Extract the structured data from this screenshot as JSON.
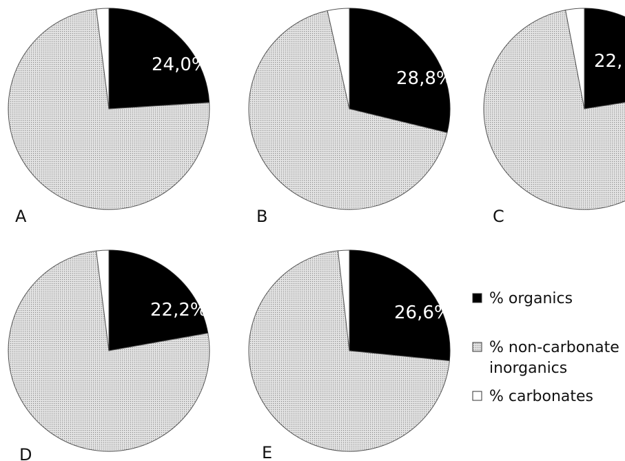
{
  "chart_data": {
    "type": "pie",
    "legend": {
      "placement": "right",
      "entries": [
        {
          "key": "organics",
          "lines": [
            "% organics"
          ],
          "color": "#000000",
          "pattern": "solid"
        },
        {
          "key": "noncarb",
          "lines": [
            "% non-carbonate",
            "inorganics"
          ],
          "color": "#d9d9d9",
          "pattern": "dotted"
        },
        {
          "key": "carbonates",
          "lines": [
            "% carbonates"
          ],
          "color": "#ffffff",
          "pattern": "outline"
        }
      ]
    },
    "panels": [
      {
        "label": "A",
        "label_text": "24,0%",
        "slices": [
          {
            "key": "organics",
            "value": 24.0
          },
          {
            "key": "noncarb",
            "value": 74.0
          },
          {
            "key": "carbonates",
            "value": 2.0
          }
        ]
      },
      {
        "label": "B",
        "label_text": "28,8%",
        "slices": [
          {
            "key": "organics",
            "value": 28.8
          },
          {
            "key": "noncarb",
            "value": 67.7
          },
          {
            "key": "carbonates",
            "value": 3.5
          }
        ]
      },
      {
        "label": "C",
        "label_text": "22,",
        "slices": [
          {
            "key": "organics",
            "value": 22.5
          },
          {
            "key": "noncarb",
            "value": 74.5
          },
          {
            "key": "carbonates",
            "value": 3.0
          }
        ]
      },
      {
        "label": "D",
        "label_text": "22,2%",
        "slices": [
          {
            "key": "organics",
            "value": 22.2
          },
          {
            "key": "noncarb",
            "value": 75.8
          },
          {
            "key": "carbonates",
            "value": 2.0
          }
        ]
      },
      {
        "label": "E",
        "label_text": "26,6%",
        "slices": [
          {
            "key": "organics",
            "value": 26.6
          },
          {
            "key": "noncarb",
            "value": 71.6
          },
          {
            "key": "carbonates",
            "value": 1.8
          }
        ]
      }
    ]
  }
}
